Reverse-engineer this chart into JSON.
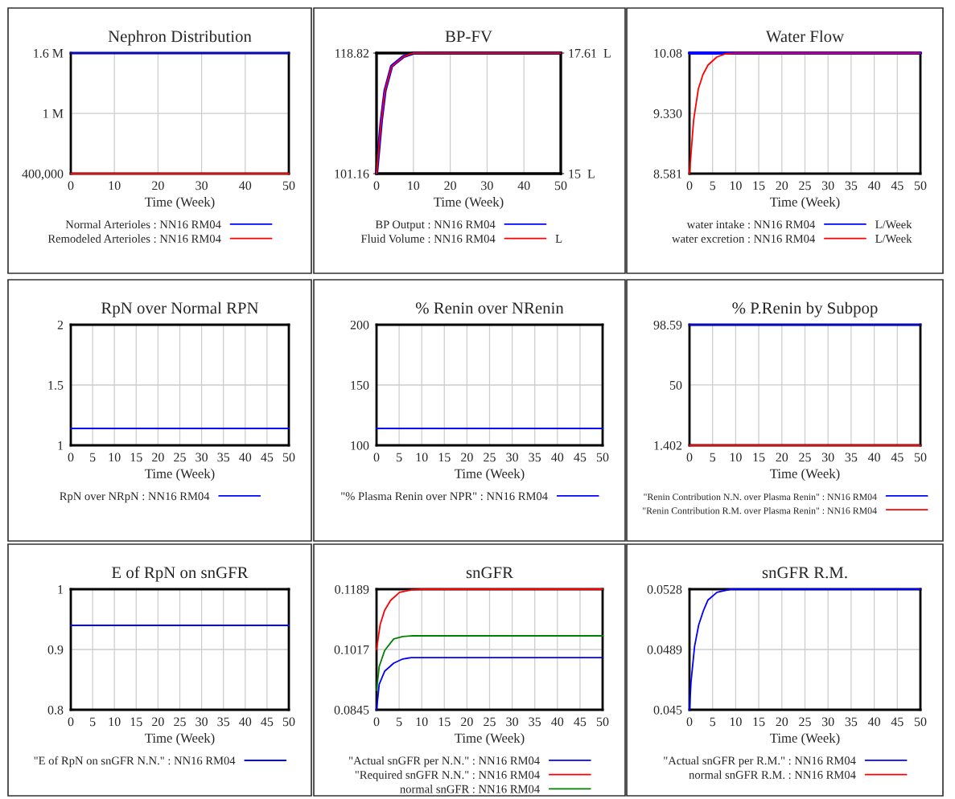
{
  "chart_data": [
    {
      "type": "line",
      "title": "Nephron Distribution",
      "xlabel": "Time (Week)",
      "xlim": [
        0,
        50
      ],
      "xticks": [
        0,
        10,
        20,
        30,
        40,
        50
      ],
      "ylim": [
        400000,
        1600000
      ],
      "yticks": [
        {
          "value": 400000,
          "label": "400,000"
        },
        {
          "value": 1000000,
          "label": "1 M"
        },
        {
          "value": 1600000,
          "label": "1.6 M"
        }
      ],
      "grid": true,
      "legend": "bottom",
      "series": [
        {
          "name": "Normal Arterioles : NN16 RM04",
          "color": "#0000ff",
          "x": [
            0,
            50
          ],
          "values": [
            1600000,
            1600000
          ]
        },
        {
          "name": "Remodeled Arterioles : NN16 RM04",
          "color": "#ff0000",
          "x": [
            0,
            50
          ],
          "values": [
            400000,
            400000
          ]
        }
      ]
    },
    {
      "type": "line",
      "title": "BP-FV",
      "xlabel": "Time (Week)",
      "xlim": [
        0,
        50
      ],
      "xticks": [
        0,
        10,
        20,
        30,
        40,
        50
      ],
      "ylim": [
        101.16,
        118.82
      ],
      "yticks": [
        101.16,
        118.82
      ],
      "y2lim": [
        15,
        17.61
      ],
      "y2ticks": [
        {
          "value": 15,
          "label": "15  L"
        },
        {
          "value": 17.61,
          "label": "17.61  L"
        }
      ],
      "grid": true,
      "legend": "bottom",
      "annotations": [
        "L"
      ],
      "series": [
        {
          "name": "BP Output : NN16 RM04",
          "color": "#0000ff",
          "x": [
            0,
            1.3,
            2.3,
            4.1,
            7.3,
            10,
            50
          ],
          "values": [
            101.16,
            108.9,
            113.3,
            116.9,
            118.3,
            118.82,
            118.82
          ]
        },
        {
          "name": "Fluid Volume : NN16 RM04",
          "color": "#ff0000",
          "axis": "y2",
          "x": [
            0,
            1.3,
            2.3,
            4.1,
            7.3,
            10,
            50
          ],
          "values": [
            15,
            16.15,
            16.8,
            17.32,
            17.53,
            17.61,
            17.61
          ]
        }
      ]
    },
    {
      "type": "line",
      "title": "Water Flow",
      "xlabel": "Time (Week)",
      "xlim": [
        0,
        50
      ],
      "xticks": [
        0,
        5,
        10,
        15,
        20,
        25,
        30,
        35,
        40,
        45,
        50
      ],
      "ylim": [
        8.581,
        10.08
      ],
      "yticks": [
        8.581,
        {
          "value": 9.33,
          "label": "9.330"
        },
        10.08
      ],
      "grid": true,
      "legend": "bottom",
      "annotations": [
        "L/Week",
        "L/Week"
      ],
      "series": [
        {
          "name": "water intake : NN16 RM04",
          "color": "#0000ff",
          "x": [
            0,
            50
          ],
          "values": [
            10.08,
            10.08
          ]
        },
        {
          "name": "water excretion : NN16 RM04",
          "color": "#ff0000",
          "x": [
            0,
            0.9,
            1.9,
            2.9,
            4,
            5.9,
            7.8,
            10,
            50
          ],
          "values": [
            8.581,
            9.25,
            9.63,
            9.81,
            9.93,
            10.03,
            10.07,
            10.08,
            10.08
          ]
        }
      ]
    },
    {
      "type": "line",
      "title": "RpN over Normal RPN",
      "xlabel": "Time (Week)",
      "xlim": [
        0,
        50
      ],
      "xticks": [
        0,
        5,
        10,
        15,
        20,
        25,
        30,
        35,
        40,
        45,
        50
      ],
      "ylim": [
        1,
        2
      ],
      "yticks": [
        1,
        1.5,
        2
      ],
      "grid": true,
      "legend": "bottom",
      "series": [
        {
          "name": "RpN over NRpN : NN16 RM04",
          "color": "#0000ff",
          "x": [
            0,
            50
          ],
          "values": [
            1.14,
            1.14
          ]
        }
      ]
    },
    {
      "type": "line",
      "title": "% Renin over NRenin",
      "xlabel": "Time (Week)",
      "xlim": [
        0,
        50
      ],
      "xticks": [
        0,
        5,
        10,
        15,
        20,
        25,
        30,
        35,
        40,
        45,
        50
      ],
      "ylim": [
        100,
        200
      ],
      "yticks": [
        100,
        150,
        200
      ],
      "grid": true,
      "legend": "bottom",
      "series": [
        {
          "name": "\"% Plasma Renin over NPR\" : NN16 RM04",
          "color": "#0000ff",
          "x": [
            0,
            50
          ],
          "values": [
            114,
            114
          ]
        }
      ]
    },
    {
      "type": "line",
      "title": "% P.Renin by Subpop",
      "xlabel": "Time (Week)",
      "xlim": [
        0,
        50
      ],
      "xticks": [
        0,
        5,
        10,
        15,
        20,
        25,
        30,
        35,
        40,
        45,
        50
      ],
      "ylim": [
        1.402,
        98.59
      ],
      "yticks": [
        1.402,
        50,
        98.59
      ],
      "grid": true,
      "legend": "bottom",
      "series": [
        {
          "name": "\"Renin Contribution N.N. over Plasma Renin\" : NN16 RM04",
          "color": "#0000ff",
          "x": [
            0,
            50
          ],
          "values": [
            98.59,
            98.59
          ]
        },
        {
          "name": "\"Renin Contribution R.M. over Plasma Renin\" : NN16 RM04",
          "color": "#ff0000",
          "x": [
            0,
            50
          ],
          "values": [
            1.402,
            1.402
          ]
        }
      ]
    },
    {
      "type": "line",
      "title": "E of RpN on snGFR",
      "xlabel": "Time (Week)",
      "xlim": [
        0,
        50
      ],
      "xticks": [
        0,
        5,
        10,
        15,
        20,
        25,
        30,
        35,
        40,
        45,
        50
      ],
      "ylim": [
        0.8,
        1
      ],
      "yticks": [
        0.8,
        0.9,
        1
      ],
      "grid": true,
      "legend": "bottom",
      "series": [
        {
          "name": "\"E of RpN on snGFR N.N.\" : NN16 RM04",
          "color": "#0000ff",
          "x": [
            0,
            50
          ],
          "values": [
            0.94,
            0.94
          ]
        }
      ]
    },
    {
      "type": "line",
      "title": "snGFR",
      "xlabel": "Time (Week)",
      "xlim": [
        0,
        50
      ],
      "xticks": [
        0,
        5,
        10,
        15,
        20,
        25,
        30,
        35,
        40,
        45,
        50
      ],
      "ylim": [
        0.0845,
        0.1189
      ],
      "yticks": [
        0.0845,
        0.1017,
        0.1189
      ],
      "grid": true,
      "legend": "bottom",
      "series": [
        {
          "name": "\"Actual snGFR per N.N.\" : NN16 RM04",
          "color": "#0000ff",
          "x": [
            0,
            0.6,
            1.8,
            3.8,
            5.8,
            7.7,
            10,
            50
          ],
          "values": [
            0.0845,
            0.0918,
            0.0955,
            0.0978,
            0.099,
            0.0994,
            0.0994,
            0.0994
          ]
        },
        {
          "name": "\"Required snGFR N.N.\" : NN16 RM04",
          "color": "#ff0000",
          "x": [
            0,
            0.8,
            1.8,
            3.1,
            5.1,
            7.7,
            10,
            50
          ],
          "values": [
            0.1017,
            0.1088,
            0.1129,
            0.1157,
            0.118,
            0.1187,
            0.1189,
            0.1189
          ]
        },
        {
          "name": "normal snGFR : NN16 RM04",
          "color": "#008000",
          "x": [
            0,
            0.6,
            1.8,
            3.8,
            5.8,
            8,
            50
          ],
          "values": [
            0.09,
            0.0969,
            0.1014,
            0.1047,
            0.1054,
            0.1056,
            0.1056
          ]
        }
      ]
    },
    {
      "type": "line",
      "title": "snGFR R.M.",
      "xlabel": "Time (Week)",
      "xlim": [
        0,
        50
      ],
      "xticks": [
        0,
        5,
        10,
        15,
        20,
        25,
        30,
        35,
        40,
        45,
        50
      ],
      "ylim": [
        0.045,
        0.0528
      ],
      "yticks": [
        0.045,
        0.0489,
        0.0528
      ],
      "grid": true,
      "legend": "bottom",
      "series": [
        {
          "name": "\"Actual snGFR per R.M.\" : NN16 RM04",
          "color": "#0000ff",
          "x": [
            0,
            0.33,
            1.1,
            2,
            3,
            4,
            5.95,
            8.9,
            50
          ],
          "values": [
            0.045,
            0.0468,
            0.0491,
            0.0505,
            0.0514,
            0.0521,
            0.0526,
            0.0528,
            0.0528
          ]
        },
        {
          "name": "normal snGFR R.M. : NN16 RM04",
          "color": "#ff0000"
        }
      ]
    }
  ]
}
